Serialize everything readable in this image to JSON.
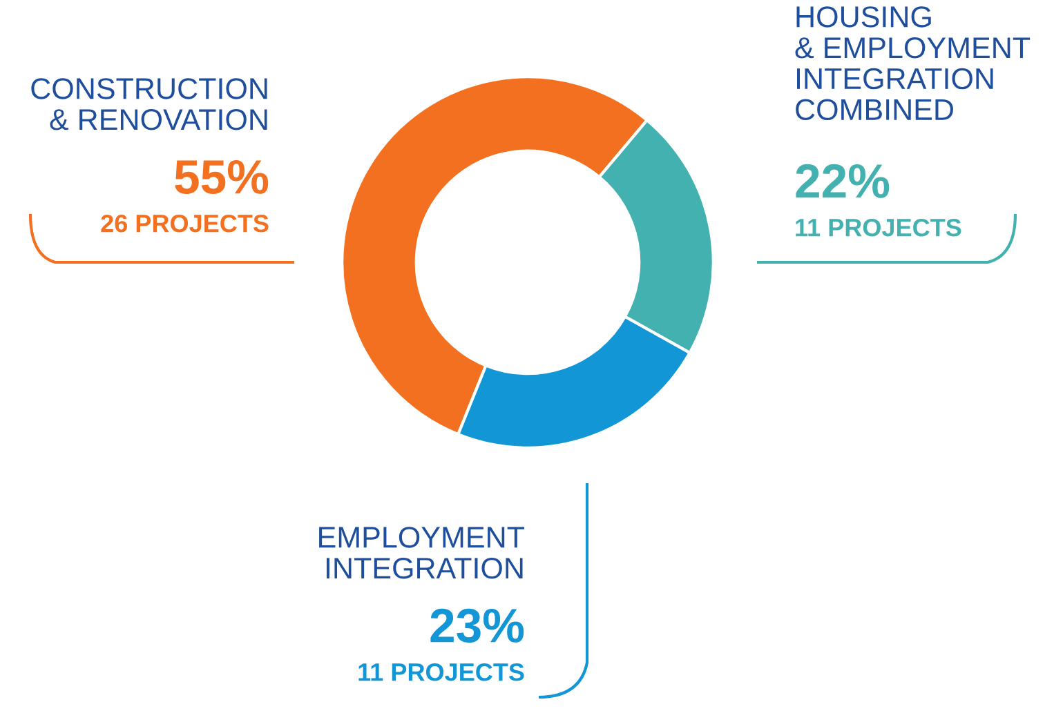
{
  "chart_data": {
    "type": "donut",
    "categories": [
      "CONSTRUCTION\n& RENOVATION",
      "HOUSING\n& EMPLOYMENT\nINTEGRATION\nCOMBINED",
      "EMPLOYMENT\nINTEGRATION"
    ],
    "values": [
      55,
      22,
      23
    ],
    "value_labels": [
      "55%",
      "22%",
      "23%"
    ],
    "colors": [
      "#f37021",
      "#42b1b0",
      "#1396d6"
    ],
    "annotations": [
      "26 PROJECTS",
      "11 PROJECTS",
      "11 PROJECTS"
    ],
    "legend": false
  }
}
